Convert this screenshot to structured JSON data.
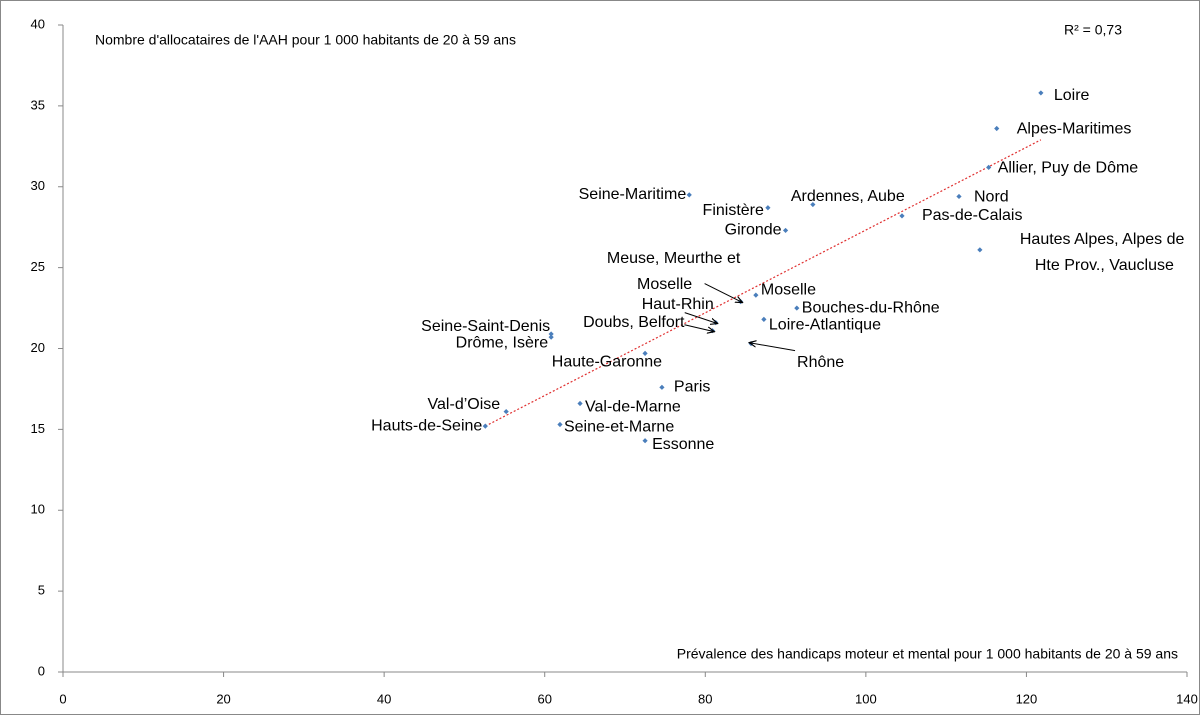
{
  "chart_data": {
    "type": "scatter",
    "title": "Nombre d'allocataires de l'AAH pour 1 000 habitants de 20 à 59 ans",
    "x_label": "Prévalence des handicaps moteur et mental pour 1 000 habitants de 20 à 59 ans",
    "annotation": "R² = 0,73",
    "color": "#4a7ebb",
    "trend_color": "#e03030",
    "labels": [
      "Loire",
      "Alpes-Maritimes",
      "Allier, Puy de Dôme",
      "Nord",
      "Pas-de-Calais",
      [
        "Hautes Alpes, Alpes de",
        "Hte Prov., Vaucluse"
      ],
      "Ardennes, Aube",
      "Finistère",
      "Seine-Maritime",
      "Gironde",
      [
        "Meuse, Meurthe et",
        "Moselle"
      ],
      "Moselle",
      "Bouches-du-Rhône",
      "Loire-Atlantique",
      "Haut-Rhin",
      "Doubs, Belfort",
      "Rhône",
      "Seine-Saint-Denis",
      "Drôme, Isère",
      "Haute-Garonne",
      "Paris",
      "Val-de-Marne",
      "Seine-et-Marne",
      "Essonne",
      "Val-d’Oise",
      "Hauts-de-Seine"
    ],
    "x": [
      121.8,
      116.3,
      115.3,
      111.6,
      104.5,
      114.2,
      93.4,
      87.8,
      78.0,
      90.0,
      84.4,
      86.3,
      91.4,
      87.3,
      81.3,
      80.9,
      85.7,
      60.8,
      60.8,
      72.5,
      74.6,
      64.4,
      61.9,
      72.5,
      55.2,
      52.6
    ],
    "values": [
      35.8,
      33.6,
      31.2,
      29.4,
      28.2,
      26.1,
      28.9,
      28.7,
      29.5,
      27.3,
      22.9,
      23.3,
      22.5,
      21.8,
      21.6,
      21.1,
      20.3,
      20.9,
      20.7,
      19.7,
      17.6,
      16.6,
      15.3,
      14.3,
      16.1,
      15.2
    ],
    "trendline": {
      "x": [
        52.6,
        121.8
      ],
      "values": [
        15.2,
        32.9
      ]
    },
    "xlim": [
      0,
      140
    ],
    "xticks": [
      0,
      20,
      40,
      60,
      80,
      100,
      120,
      140
    ],
    "ylim": [
      0,
      40
    ],
    "yticks": [
      0,
      5,
      10,
      15,
      20,
      25,
      30,
      35,
      40
    ],
    "grid": false
  }
}
